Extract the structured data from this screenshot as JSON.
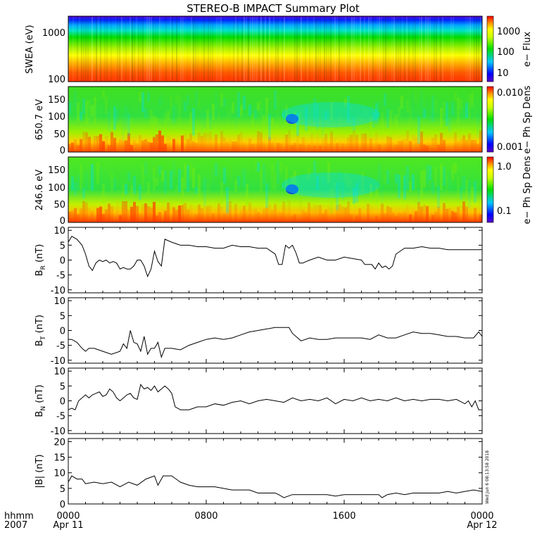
{
  "title": "STEREO-B IMPACT Summary Plot",
  "footer": {
    "time_label": "hhmm",
    "year_label": "2007",
    "date_start": "Apr 11",
    "date_end": "Apr 12",
    "timestamp": "Wed Jun  6 08:13:58 2018"
  },
  "chart_data": [
    {
      "type": "heatmap",
      "ylabel": "SWEA (eV)",
      "yscale": "log",
      "ylim": [
        100,
        2000
      ],
      "yticks": [
        "100",
        "1000"
      ],
      "colorbar": {
        "label": "e− Flux",
        "scale": "log",
        "range": [
          4,
          4000
        ],
        "ticks": [
          "10",
          "100",
          "1000"
        ]
      },
      "xlim": [
        0,
        24
      ],
      "xticks": [
        "0000",
        "0800",
        "1600",
        "0000"
      ],
      "description_values": "energy-time spectrogram; flux decreases with energy from ~4000 near 100 eV to ~4 near 2000 eV"
    },
    {
      "type": "heatmap",
      "ylabel": "650.7 eV",
      "ylim": [
        0,
        180
      ],
      "yticks": [
        "0",
        "50",
        "100",
        "150"
      ],
      "colorbar": {
        "label": "e− Ph Sp Dens",
        "scale": "log",
        "range": [
          0.001,
          0.012
        ],
        "ticks": [
          "0.001",
          "0.010"
        ]
      },
      "xlim": [
        0,
        24
      ],
      "xticks": [
        "0000",
        "0800",
        "1600",
        "0000"
      ]
    },
    {
      "type": "heatmap",
      "ylabel": "246.6 eV",
      "ylim": [
        0,
        180
      ],
      "yticks": [
        "0",
        "50",
        "100",
        "150"
      ],
      "colorbar": {
        "label": "e− Ph Sp Dens",
        "scale": "log",
        "range": [
          0.05,
          1.2
        ],
        "ticks": [
          "0.1",
          "1.0"
        ]
      },
      "xlim": [
        0,
        24
      ],
      "xticks": [
        "0000",
        "0800",
        "1600",
        "0000"
      ]
    },
    {
      "type": "line",
      "ylabel": "B",
      "ylabel_sub": "R",
      "ylabel_unit": " (nT)",
      "ylim": [
        -11,
        11
      ],
      "yticks": [
        "-10",
        "-5",
        "0",
        "5",
        "10"
      ],
      "xlim": [
        0,
        24
      ],
      "xticks": [
        "0000",
        "0800",
        "1600",
        "0000"
      ],
      "x": [
        0,
        0.2,
        0.5,
        0.8,
        1,
        1.2,
        1.4,
        1.6,
        1.8,
        2,
        2.2,
        2.4,
        2.6,
        2.8,
        3,
        3.2,
        3.4,
        3.6,
        3.8,
        4,
        4.2,
        4.4,
        4.6,
        4.8,
        5,
        5.2,
        5.4,
        5.6,
        5.8,
        6,
        6.5,
        7,
        7.5,
        8,
        8.5,
        9,
        9.5,
        10,
        10.5,
        11,
        11.5,
        12,
        12.2,
        12.4,
        12.6,
        12.8,
        13,
        13.2,
        13.4,
        13.6,
        13.8,
        14,
        14.5,
        15,
        15.5,
        16,
        16.5,
        17,
        17.2,
        17.4,
        17.6,
        17.8,
        18,
        18.2,
        18.4,
        18.6,
        18.8,
        19,
        19.5,
        20,
        20.5,
        21,
        21.5,
        22,
        22.5,
        23,
        23.5,
        24
      ],
      "y": [
        6,
        8,
        7,
        5,
        2,
        -2,
        -3.5,
        -1,
        0,
        -0.5,
        0,
        -1,
        -0.5,
        -1,
        -3,
        -2.5,
        -3,
        -3,
        -2,
        0,
        0,
        -2,
        -5.5,
        -3,
        3,
        -0.5,
        -2,
        7,
        6.5,
        6,
        5,
        5,
        4.5,
        4.5,
        4,
        4,
        5,
        4.5,
        4.5,
        4,
        4,
        2,
        -1.5,
        -1.5,
        5,
        4,
        5,
        2.5,
        -1,
        -1,
        -0.5,
        0,
        1,
        0,
        0,
        1,
        0.5,
        0,
        -1.5,
        -1.5,
        -1.5,
        -3,
        -1,
        -2.5,
        -2,
        -3,
        -2,
        2,
        4,
        4,
        4.5,
        4,
        4,
        3.5,
        3.5,
        3.5,
        3.5,
        3.5
      ]
    },
    {
      "type": "line",
      "ylabel": "B",
      "ylabel_sub": "T",
      "ylabel_unit": " (nT)",
      "ylim": [
        -11,
        11
      ],
      "yticks": [
        "-10",
        "-5",
        "0",
        "5",
        "10"
      ],
      "xlim": [
        0,
        24
      ],
      "xticks": [
        "0000",
        "0800",
        "1600",
        "0000"
      ],
      "x": [
        0,
        0.2,
        0.5,
        0.8,
        1,
        1.2,
        1.5,
        2,
        2.5,
        3,
        3.2,
        3.4,
        3.6,
        3.8,
        4,
        4.2,
        4.4,
        4.6,
        4.8,
        5,
        5.2,
        5.4,
        5.6,
        6,
        6.5,
        7,
        7.5,
        8,
        8.5,
        9,
        9.5,
        10,
        10.5,
        11,
        11.5,
        12,
        12.5,
        12.8,
        13,
        13.5,
        14,
        14.5,
        15,
        15.5,
        16,
        16.5,
        17,
        17.5,
        18,
        18.5,
        19,
        19.5,
        20,
        20.5,
        21,
        21.5,
        22,
        22.5,
        23,
        23.5,
        23.8,
        24
      ],
      "y": [
        -3,
        -3,
        -4,
        -6,
        -7,
        -6,
        -6,
        -7,
        -8,
        -7,
        -4.5,
        -6,
        0,
        -4,
        -4.5,
        -7,
        -2,
        -8,
        -6,
        -6,
        -4,
        -9,
        -6,
        -6,
        -6.5,
        -5,
        -4,
        -3,
        -2.5,
        -3,
        -2.5,
        -1.5,
        -0.5,
        0,
        0.5,
        1,
        1,
        1,
        -1,
        -3.5,
        -2.5,
        -3,
        -3,
        -2.5,
        -2.5,
        -2.5,
        -2.5,
        -3,
        -1.5,
        -2.5,
        -2.5,
        -1.5,
        -0.5,
        -1,
        -1,
        -1.5,
        -2,
        -2,
        -2.5,
        -2.5,
        -0.5,
        -2
      ]
    },
    {
      "type": "line",
      "ylabel": "B",
      "ylabel_sub": "N",
      "ylabel_unit": " (nT)",
      "ylim": [
        -11,
        11
      ],
      "yticks": [
        "-10",
        "-5",
        "0",
        "5",
        "10"
      ],
      "xlim": [
        0,
        24
      ],
      "xticks": [
        "0000",
        "0800",
        "1600",
        "0000"
      ],
      "x": [
        0,
        0.2,
        0.4,
        0.6,
        0.8,
        1,
        1.2,
        1.4,
        1.6,
        1.8,
        2,
        2.2,
        2.4,
        2.6,
        2.8,
        3,
        3.2,
        3.4,
        3.6,
        3.8,
        4,
        4.2,
        4.4,
        4.6,
        4.8,
        5,
        5.2,
        5.4,
        5.6,
        5.8,
        6,
        6.2,
        6.5,
        7,
        7.5,
        8,
        8.5,
        9,
        9.5,
        10,
        10.5,
        11,
        11.5,
        12,
        12.5,
        13,
        13.5,
        14,
        14.5,
        15,
        15.5,
        16,
        16.5,
        17,
        17.5,
        18,
        18.5,
        19,
        19.5,
        20,
        20.5,
        21,
        21.5,
        22,
        22.5,
        23,
        23.2,
        23.4,
        23.6,
        23.8,
        24
      ],
      "y": [
        -3,
        -2.5,
        -3,
        0,
        1,
        2,
        1,
        2,
        2.5,
        3,
        1.5,
        2,
        4,
        3,
        1,
        0,
        1,
        2,
        2.5,
        1,
        0.5,
        5.5,
        4,
        4.5,
        3.5,
        5,
        3,
        4,
        5,
        4,
        2.5,
        -2,
        -3,
        -3,
        -2,
        -2,
        -1,
        -1.5,
        -0.5,
        0,
        -1,
        0,
        0.5,
        0,
        -0.5,
        1,
        0,
        0.5,
        0,
        1,
        -1,
        0.5,
        0,
        1,
        0,
        0.5,
        0,
        1,
        0,
        0.5,
        0,
        0.5,
        0.5,
        0,
        0.5,
        -1,
        0,
        -2,
        0,
        -3,
        -3
      ]
    },
    {
      "type": "line",
      "ylabel": "|B| (nT)",
      "ylim": [
        0,
        21
      ],
      "yticks": [
        "0",
        "5",
        "10",
        "15",
        "20"
      ],
      "xlim": [
        0,
        24
      ],
      "xticks": [
        "0000",
        "0800",
        "1600",
        "0000"
      ],
      "x": [
        0,
        0.2,
        0.5,
        0.8,
        1,
        1.5,
        2,
        2.5,
        3,
        3.5,
        4,
        4.5,
        5,
        5.2,
        5.5,
        6,
        6.5,
        7,
        7.5,
        8,
        8.5,
        9,
        9.5,
        10,
        10.5,
        11,
        11.5,
        12,
        12.2,
        12.5,
        13,
        13.5,
        14,
        14.5,
        15,
        15.5,
        16,
        16.5,
        17,
        17.5,
        18,
        18.2,
        18.5,
        19,
        19.5,
        20,
        20.5,
        21,
        21.5,
        22,
        22.5,
        23,
        23.5,
        24
      ],
      "y": [
        7,
        9,
        8,
        8,
        6.5,
        7,
        6.5,
        7,
        5.5,
        7,
        6,
        8,
        9,
        6,
        9,
        9,
        7,
        6,
        5.5,
        5.5,
        5.5,
        5,
        4.5,
        4.5,
        4.5,
        3.5,
        3.5,
        3.5,
        3,
        2,
        3,
        3,
        3,
        3,
        3,
        2.5,
        3,
        3,
        3,
        3,
        3,
        2,
        3,
        3.5,
        3,
        3.5,
        3.5,
        3.5,
        3.5,
        4,
        3.5,
        4,
        4.5,
        4
      ]
    }
  ]
}
